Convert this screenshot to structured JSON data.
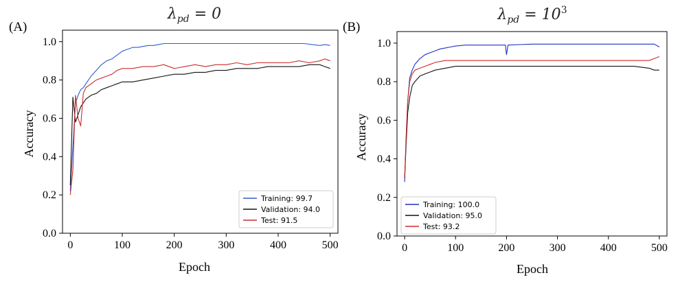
{
  "chart_data": [
    {
      "type": "line",
      "panel_label": "(A)",
      "title": {
        "prefix": "λ",
        "subscript": "pd",
        "suffix": " = 0"
      },
      "xlabel": "Epoch",
      "ylabel": "Accuracy",
      "xlim": [
        -15,
        515
      ],
      "ylim": [
        0.0,
        1.06
      ],
      "xticks": [
        0,
        100,
        200,
        300,
        400,
        500
      ],
      "yticks": [
        0.0,
        0.2,
        0.4,
        0.6,
        0.8,
        1.0
      ],
      "xtick_labels": [
        "0",
        "100",
        "200",
        "300",
        "400",
        "500"
      ],
      "ytick_labels": [
        "0.0",
        "0.2",
        "0.4",
        "0.6",
        "0.8",
        "1.0"
      ],
      "grid": false,
      "legend_position": "bottom-right",
      "series": [
        {
          "name": "Training",
          "legend_label": "Training: 99.7",
          "color": "#2d5ccf",
          "x": [
            0,
            5,
            10,
            15,
            20,
            25,
            30,
            40,
            50,
            60,
            70,
            80,
            90,
            100,
            110,
            120,
            130,
            140,
            150,
            160,
            170,
            180,
            190,
            200,
            210,
            220,
            250,
            275,
            280,
            300,
            350,
            400,
            450,
            480,
            490,
            500
          ],
          "y": [
            0.22,
            0.45,
            0.68,
            0.72,
            0.75,
            0.76,
            0.78,
            0.82,
            0.85,
            0.88,
            0.9,
            0.91,
            0.93,
            0.95,
            0.96,
            0.97,
            0.97,
            0.975,
            0.98,
            0.98,
            0.985,
            0.99,
            0.99,
            0.99,
            0.99,
            0.99,
            0.99,
            0.99,
            0.99,
            0.99,
            0.99,
            0.99,
            0.99,
            0.98,
            0.985,
            0.98
          ]
        },
        {
          "name": "Validation",
          "legend_label": "Validation: 94.0",
          "color": "#111111",
          "x": [
            0,
            5,
            10,
            15,
            20,
            25,
            30,
            40,
            50,
            60,
            70,
            80,
            90,
            100,
            120,
            140,
            160,
            180,
            200,
            220,
            240,
            260,
            280,
            300,
            320,
            340,
            360,
            380,
            400,
            420,
            440,
            460,
            480,
            490,
            500
          ],
          "y": [
            0.25,
            0.71,
            0.58,
            0.62,
            0.66,
            0.68,
            0.7,
            0.72,
            0.73,
            0.75,
            0.76,
            0.77,
            0.78,
            0.79,
            0.79,
            0.8,
            0.81,
            0.82,
            0.83,
            0.83,
            0.84,
            0.84,
            0.85,
            0.85,
            0.86,
            0.86,
            0.86,
            0.87,
            0.87,
            0.87,
            0.87,
            0.88,
            0.88,
            0.87,
            0.86
          ]
        },
        {
          "name": "Test",
          "legend_label": "Test: 91.5",
          "color": "#cc2a2a",
          "x": [
            0,
            5,
            10,
            15,
            20,
            25,
            30,
            40,
            50,
            60,
            70,
            80,
            90,
            100,
            120,
            140,
            160,
            180,
            200,
            220,
            240,
            260,
            280,
            300,
            320,
            340,
            360,
            380,
            400,
            420,
            440,
            460,
            480,
            490,
            500
          ],
          "y": [
            0.2,
            0.33,
            0.72,
            0.6,
            0.56,
            0.73,
            0.76,
            0.78,
            0.8,
            0.81,
            0.82,
            0.83,
            0.85,
            0.86,
            0.86,
            0.87,
            0.87,
            0.88,
            0.86,
            0.87,
            0.88,
            0.87,
            0.88,
            0.88,
            0.89,
            0.88,
            0.89,
            0.89,
            0.89,
            0.89,
            0.9,
            0.89,
            0.9,
            0.91,
            0.9
          ]
        }
      ]
    },
    {
      "type": "line",
      "panel_label": "(B)",
      "title": {
        "prefix": "λ",
        "subscript": "pd",
        "suffix": " = 10",
        "superscript": "3"
      },
      "xlabel": "Epoch",
      "ylabel": "Accuracy",
      "xlim": [
        -15,
        515
      ],
      "ylim": [
        0.0,
        1.06
      ],
      "xticks": [
        0,
        100,
        200,
        300,
        400,
        500
      ],
      "yticks": [
        0.0,
        0.2,
        0.4,
        0.6,
        0.8,
        1.0
      ],
      "xtick_labels": [
        "0",
        "100",
        "200",
        "300",
        "400",
        "500"
      ],
      "ytick_labels": [
        "0.0",
        "0.2",
        "0.4",
        "0.6",
        "0.8",
        "1.0"
      ],
      "grid": false,
      "legend_position": "bottom-left",
      "series": [
        {
          "name": "Training",
          "legend_label": "Training: 100.0",
          "color": "#1f2fc4",
          "x": [
            0,
            3,
            6,
            10,
            15,
            20,
            30,
            40,
            50,
            60,
            70,
            80,
            90,
            100,
            120,
            150,
            198,
            200,
            203,
            250,
            300,
            350,
            400,
            450,
            490,
            500
          ],
          "y": [
            0.28,
            0.5,
            0.7,
            0.82,
            0.86,
            0.89,
            0.92,
            0.94,
            0.95,
            0.96,
            0.97,
            0.975,
            0.98,
            0.985,
            0.99,
            0.99,
            0.99,
            0.94,
            0.99,
            0.995,
            0.995,
            0.995,
            0.995,
            0.995,
            0.995,
            0.98
          ]
        },
        {
          "name": "Validation",
          "legend_label": "Validation: 95.0",
          "color": "#111111",
          "x": [
            0,
            3,
            6,
            10,
            15,
            20,
            30,
            40,
            50,
            60,
            80,
            100,
            120,
            150,
            200,
            250,
            300,
            350,
            400,
            450,
            480,
            490,
            500
          ],
          "y": [
            0.3,
            0.48,
            0.64,
            0.72,
            0.78,
            0.8,
            0.83,
            0.84,
            0.85,
            0.86,
            0.87,
            0.88,
            0.88,
            0.88,
            0.88,
            0.88,
            0.88,
            0.88,
            0.88,
            0.88,
            0.87,
            0.86,
            0.86
          ]
        },
        {
          "name": "Test",
          "legend_label": "Test: 93.2",
          "color": "#d02a2a",
          "x": [
            0,
            3,
            6,
            10,
            15,
            20,
            30,
            40,
            50,
            60,
            80,
            100,
            120,
            150,
            200,
            250,
            300,
            350,
            400,
            450,
            480,
            490,
            500
          ],
          "y": [
            0.3,
            0.52,
            0.7,
            0.8,
            0.84,
            0.86,
            0.87,
            0.88,
            0.89,
            0.9,
            0.91,
            0.91,
            0.91,
            0.91,
            0.91,
            0.91,
            0.91,
            0.91,
            0.91,
            0.91,
            0.91,
            0.92,
            0.93
          ]
        }
      ]
    }
  ]
}
